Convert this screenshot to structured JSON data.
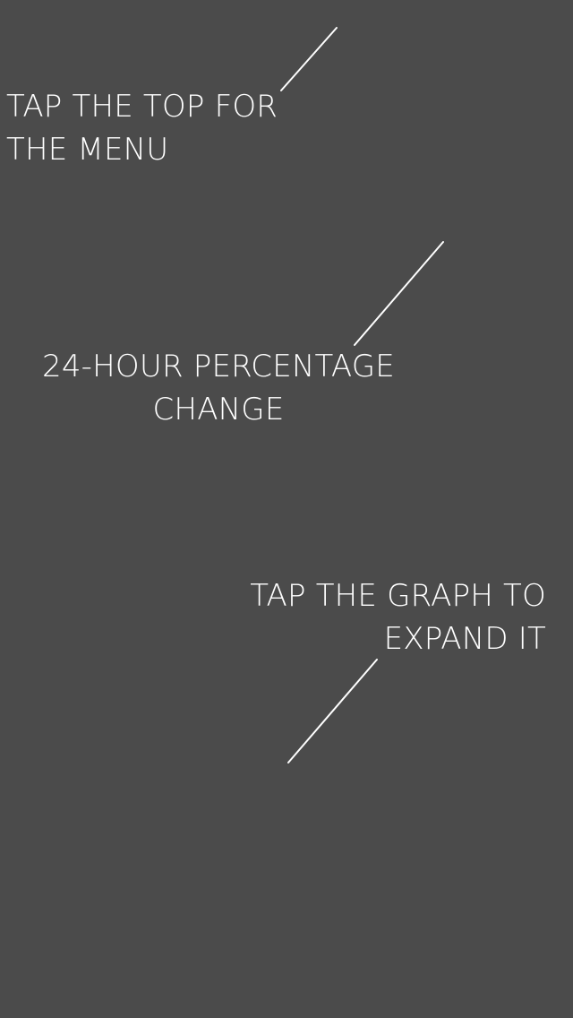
{
  "colors": {
    "background": "#4b4b4b",
    "foreground": "#ffffff"
  },
  "tips": {
    "menu": {
      "line1": "TAP THE TOP FOR",
      "line2": "THE MENU"
    },
    "change": {
      "line1": "24-HOUR PERCENTAGE",
      "line2": "CHANGE"
    },
    "graph": {
      "line1": "TAP THE GRAPH TO",
      "line2": "EXPAND IT"
    }
  }
}
